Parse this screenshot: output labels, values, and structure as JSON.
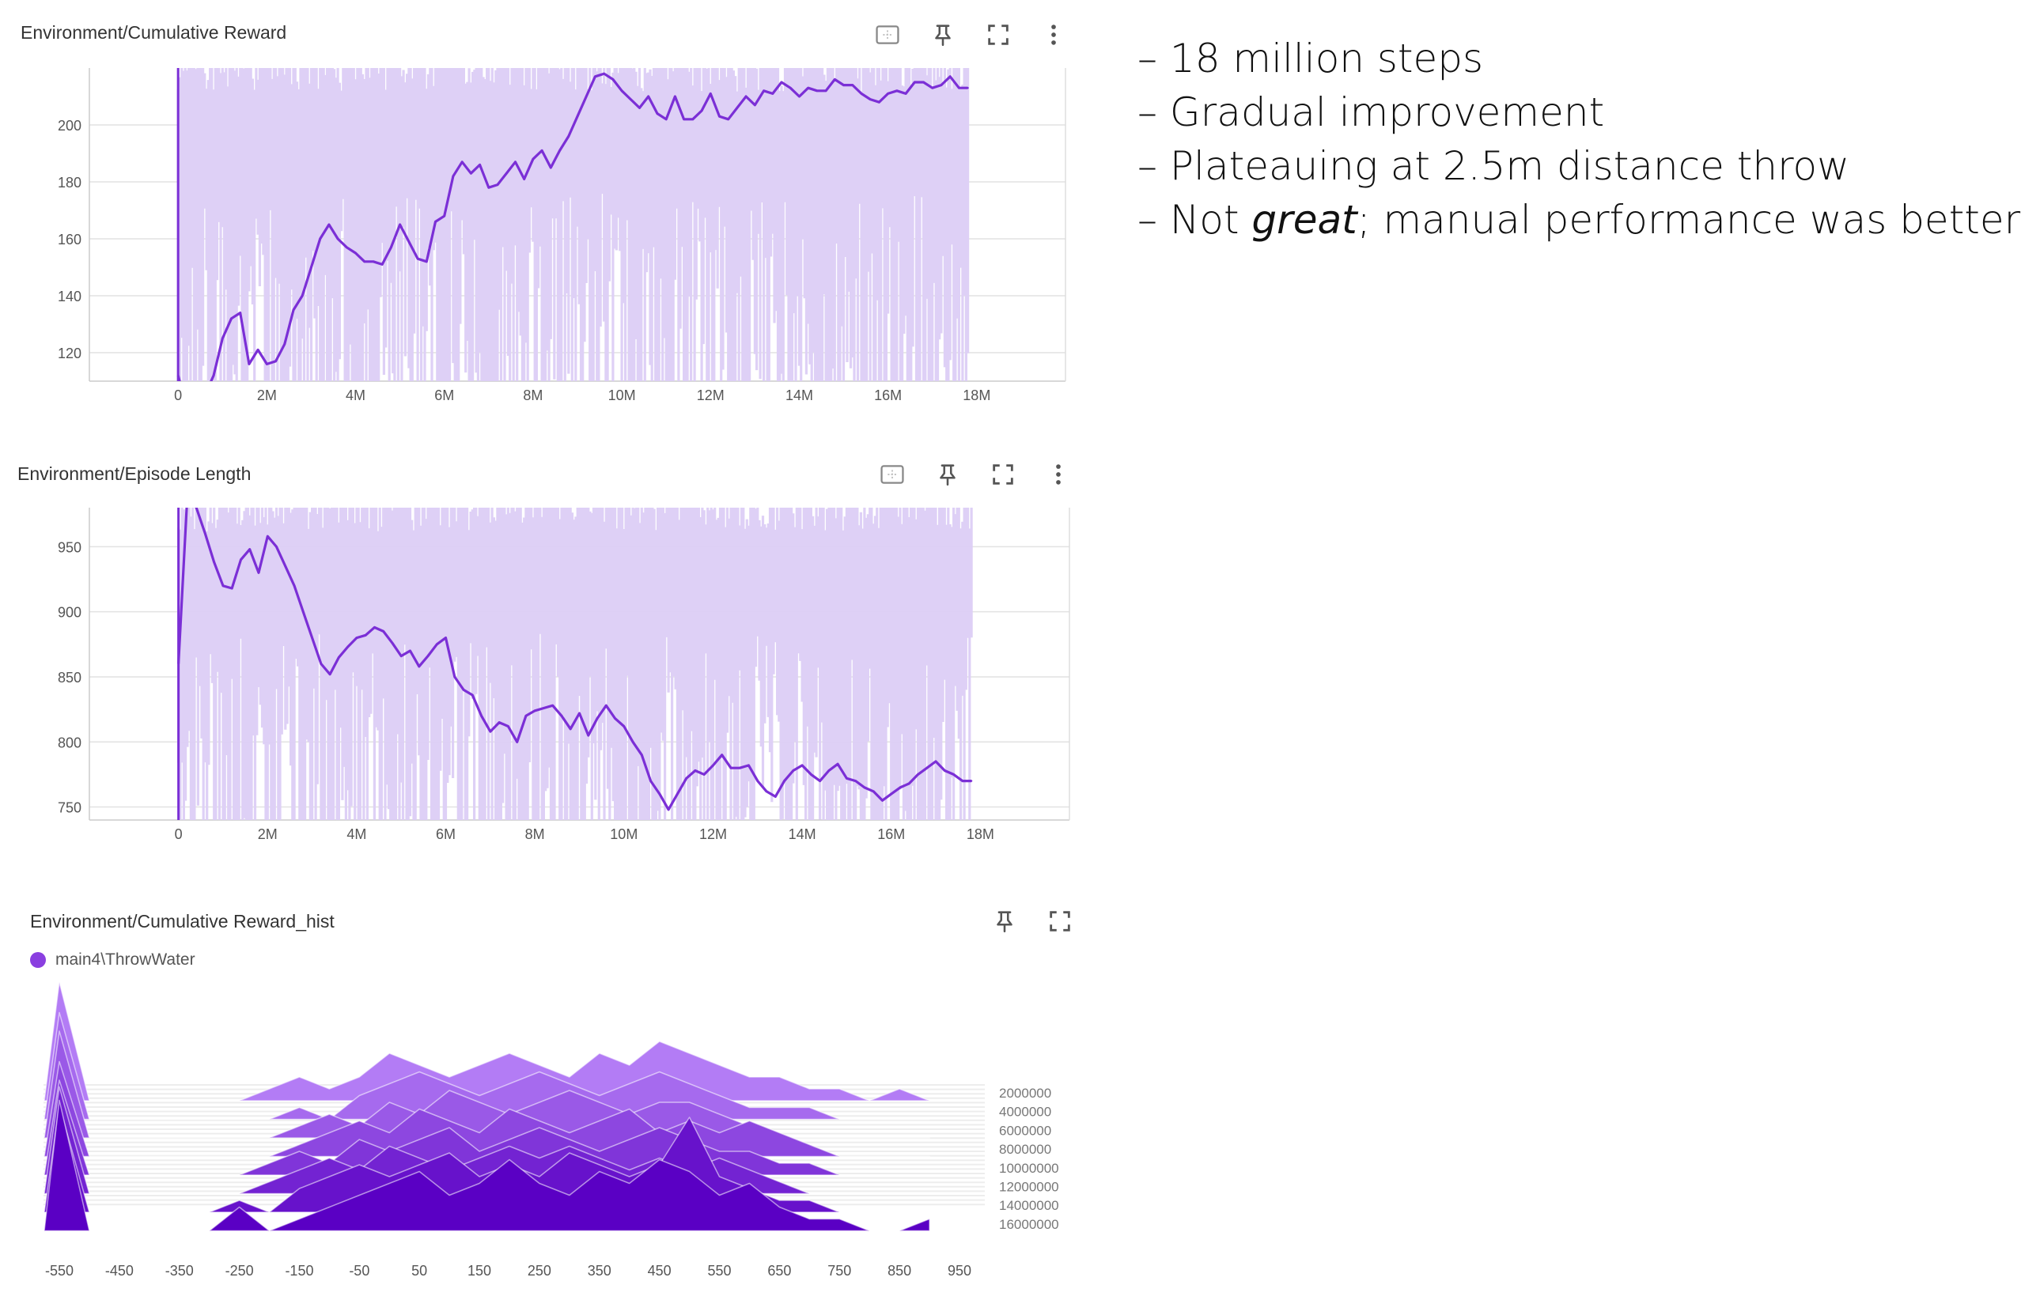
{
  "slide": {
    "bullets": [
      {
        "dash": "–",
        "text": "18 million steps"
      },
      {
        "dash": "–",
        "text": "Gradual improvement"
      },
      {
        "dash": "–",
        "text": "Plateauing at 2.5m distance throw"
      },
      {
        "dash": "–",
        "pre": "Not ",
        "em": "great",
        "post": "; manual performance was better"
      }
    ]
  },
  "panels": {
    "reward": {
      "title": "Environment/Cumulative Reward"
    },
    "length": {
      "title": "Environment/Episode Length"
    },
    "hist": {
      "title": "Environment/Cumulative Reward_hist",
      "legend": "main4\\ThrowWater"
    }
  },
  "icons": [
    "fit-domain-icon",
    "pin-icon",
    "fullscreen-icon",
    "more-vert-icon"
  ],
  "colors": {
    "line": "#7b2fd6",
    "band": "#dccdf6",
    "hist_light": "#b37cf5",
    "hist_dark": "#5a00c4",
    "grid": "#e2e2e2"
  },
  "chart_data": [
    {
      "type": "line",
      "title": "Environment/Cumulative Reward",
      "xlabel": "",
      "ylabel": "",
      "x_ticks": [
        "0",
        "2M",
        "4M",
        "6M",
        "8M",
        "10M",
        "12M",
        "14M",
        "16M",
        "18M"
      ],
      "y_ticks": [
        "120",
        "140",
        "160",
        "180",
        "200"
      ],
      "xlim": [
        -2000000,
        20000000
      ],
      "ylim": [
        110,
        220
      ],
      "grid": true,
      "series": [
        {
          "x": [
            0,
            200000,
            400000,
            600000,
            800000,
            1000000,
            1200000,
            1400000,
            1600000,
            1800000,
            2000000,
            2200000,
            2400000,
            2600000,
            2800000,
            3000000,
            3200000,
            3400000,
            3600000,
            3800000,
            4000000,
            4200000,
            4400000,
            4600000,
            4800000,
            5000000,
            5200000,
            5400000,
            5600000,
            5800000,
            6000000,
            6200000,
            6400000,
            6600000,
            6800000,
            7000000,
            7200000,
            7400000,
            7600000,
            7800000,
            8000000,
            8200000,
            8400000,
            8600000,
            8800000,
            9000000,
            9200000,
            9400000,
            9600000,
            9800000,
            10000000,
            10200000,
            10400000,
            10600000,
            10800000,
            11000000,
            11200000,
            11400000,
            11600000,
            11800000,
            12000000,
            12200000,
            12400000,
            12600000,
            12800000,
            13000000,
            13200000,
            13400000,
            13600000,
            13800000,
            14000000,
            14200000,
            14400000,
            14600000,
            14800000,
            15000000,
            15200000,
            15400000,
            15600000,
            15800000,
            16000000,
            16200000,
            16400000,
            16600000,
            16800000,
            17000000,
            17200000,
            17400000,
            17600000,
            17800000
          ],
          "y": [
            112,
            100,
            108,
            105,
            112,
            125,
            132,
            134,
            116,
            121,
            116,
            117,
            123,
            135,
            140,
            150,
            160,
            165,
            160,
            157,
            155,
            152,
            152,
            151,
            157,
            165,
            159,
            153,
            152,
            166,
            168,
            182,
            187,
            183,
            186,
            178,
            179,
            183,
            187,
            181,
            188,
            191,
            185,
            191,
            196,
            203,
            210,
            217,
            218,
            216,
            212,
            209,
            206,
            210,
            204,
            202,
            210,
            202,
            202,
            205,
            211,
            203,
            202,
            206,
            210,
            207,
            212,
            211,
            215,
            213,
            210,
            213,
            212,
            212,
            216,
            214,
            214,
            211,
            209,
            208,
            211,
            212,
            211,
            215,
            215,
            213,
            214,
            217,
            213,
            213
          ]
        }
      ]
    },
    {
      "type": "line",
      "title": "Environment/Episode Length",
      "xlabel": "",
      "ylabel": "",
      "x_ticks": [
        "0",
        "2M",
        "4M",
        "6M",
        "8M",
        "10M",
        "12M",
        "14M",
        "16M",
        "18M"
      ],
      "y_ticks": [
        "750",
        "800",
        "850",
        "900",
        "950"
      ],
      "xlim": [
        -2000000,
        20000000
      ],
      "ylim": [
        740,
        980
      ],
      "grid": true,
      "series": [
        {
          "x": [
            0,
            200000,
            400000,
            600000,
            800000,
            1000000,
            1200000,
            1400000,
            1600000,
            1800000,
            2000000,
            2200000,
            2400000,
            2600000,
            2800000,
            3000000,
            3200000,
            3400000,
            3600000,
            3800000,
            4000000,
            4200000,
            4400000,
            4600000,
            4800000,
            5000000,
            5200000,
            5400000,
            5600000,
            5800000,
            6000000,
            6200000,
            6400000,
            6600000,
            6800000,
            7000000,
            7200000,
            7400000,
            7600000,
            7800000,
            8000000,
            8200000,
            8400000,
            8600000,
            8800000,
            9000000,
            9200000,
            9400000,
            9600000,
            9800000,
            10000000,
            10200000,
            10400000,
            10600000,
            10800000,
            11000000,
            11200000,
            11400000,
            11600000,
            11800000,
            12000000,
            12200000,
            12400000,
            12600000,
            12800000,
            13000000,
            13200000,
            13400000,
            13600000,
            13800000,
            14000000,
            14200000,
            14400000,
            14600000,
            14800000,
            15000000,
            15200000,
            15400000,
            15600000,
            15800000,
            16000000,
            16200000,
            16400000,
            16600000,
            16800000,
            17000000,
            17200000,
            17400000,
            17600000,
            17800000
          ],
          "y": [
            860,
            990,
            980,
            960,
            938,
            920,
            918,
            940,
            948,
            930,
            958,
            950,
            935,
            920,
            900,
            880,
            860,
            852,
            865,
            873,
            880,
            882,
            888,
            885,
            876,
            866,
            870,
            858,
            866,
            875,
            880,
            850,
            840,
            836,
            820,
            808,
            815,
            812,
            800,
            820,
            824,
            826,
            828,
            820,
            810,
            822,
            805,
            818,
            828,
            818,
            812,
            800,
            790,
            770,
            760,
            748,
            760,
            772,
            778,
            775,
            782,
            790,
            780,
            780,
            782,
            770,
            762,
            758,
            770,
            778,
            782,
            775,
            770,
            778,
            783,
            772,
            770,
            765,
            762,
            755,
            760,
            765,
            768,
            775,
            780,
            785,
            778,
            775,
            770,
            770
          ]
        }
      ]
    },
    {
      "type": "area",
      "title": "Environment/Cumulative Reward_hist",
      "legend": "main4\\ThrowWater",
      "x_ticks": [
        "-550",
        "-450",
        "-350",
        "-250",
        "-150",
        "-50",
        "50",
        "150",
        "250",
        "350",
        "450",
        "550",
        "650",
        "750",
        "850",
        "950"
      ],
      "step_labels": [
        "2000000",
        "4000000",
        "6000000",
        "8000000",
        "10000000",
        "12000000",
        "14000000",
        "16000000"
      ],
      "bins": [
        -550,
        -500,
        -450,
        -400,
        -350,
        -300,
        -250,
        -200,
        -150,
        -100,
        -50,
        0,
        50,
        100,
        150,
        200,
        250,
        300,
        350,
        400,
        450,
        500,
        550,
        600,
        650,
        700,
        750,
        800,
        850,
        900
      ],
      "series": [
        {
          "step": 2000000,
          "counts": [
            10,
            0,
            0,
            0,
            0,
            0,
            0,
            1,
            2,
            1,
            2,
            4,
            3,
            2,
            3,
            4,
            3,
            2,
            4,
            3,
            5,
            4,
            3,
            2,
            2,
            1,
            1,
            0,
            1,
            0
          ]
        },
        {
          "step": 4000000,
          "counts": [
            9,
            0,
            0,
            0,
            0,
            0,
            0,
            0,
            1,
            0,
            2,
            3,
            4,
            3,
            2,
            3,
            4,
            3,
            2,
            3,
            4,
            3,
            2,
            1,
            1,
            1,
            0,
            0,
            0,
            0
          ]
        },
        {
          "step": 6000000,
          "counts": [
            9,
            0,
            0,
            0,
            0,
            0,
            0,
            0,
            1,
            2,
            1,
            3,
            2,
            4,
            3,
            2,
            3,
            4,
            3,
            2,
            3,
            3,
            2,
            1,
            0,
            0,
            0,
            0,
            0,
            0
          ]
        },
        {
          "step": 8000000,
          "counts": [
            8,
            0,
            0,
            0,
            0,
            0,
            0,
            0,
            1,
            2,
            3,
            2,
            4,
            3,
            2,
            4,
            3,
            2,
            3,
            4,
            2,
            3,
            2,
            3,
            2,
            1,
            0,
            0,
            0,
            0
          ]
        },
        {
          "step": 10000000,
          "counts": [
            8,
            0,
            0,
            0,
            0,
            0,
            0,
            1,
            2,
            1,
            3,
            2,
            3,
            4,
            2,
            3,
            4,
            3,
            2,
            3,
            4,
            3,
            2,
            2,
            1,
            1,
            0,
            0,
            0,
            0
          ]
        },
        {
          "step": 12000000,
          "counts": [
            9,
            0,
            0,
            0,
            0,
            0,
            0,
            1,
            2,
            3,
            2,
            4,
            3,
            2,
            3,
            4,
            3,
            4,
            3,
            2,
            3,
            2,
            3,
            2,
            1,
            0,
            0,
            0,
            0,
            0
          ]
        },
        {
          "step": 14000000,
          "counts": [
            9,
            0,
            0,
            0,
            0,
            0,
            1,
            0,
            2,
            3,
            4,
            3,
            4,
            5,
            3,
            4,
            3,
            5,
            4,
            3,
            4,
            8,
            3,
            2,
            1,
            1,
            0,
            0,
            0,
            0
          ]
        },
        {
          "step": 16000000,
          "counts": [
            11,
            0,
            0,
            0,
            0,
            0,
            2,
            0,
            1,
            2,
            3,
            4,
            5,
            3,
            4,
            6,
            4,
            3,
            5,
            4,
            6,
            5,
            3,
            4,
            2,
            1,
            1,
            0,
            0,
            1
          ]
        }
      ]
    }
  ]
}
